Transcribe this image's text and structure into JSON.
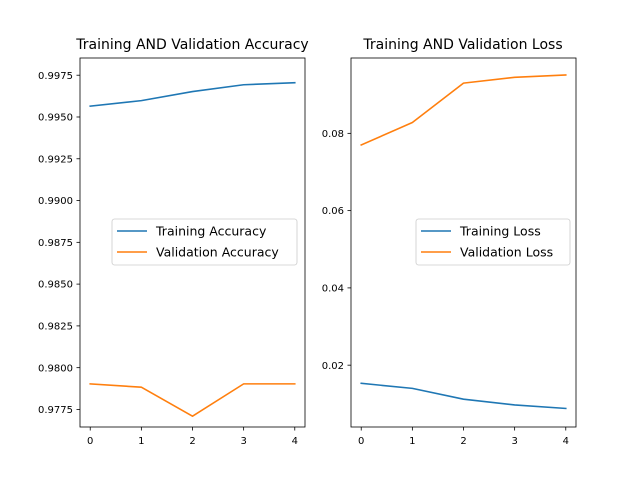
{
  "colors": {
    "training": "#1f77b4",
    "validation": "#ff7f0e",
    "axis": "#000000",
    "background": "#ffffff"
  },
  "chart_data": [
    {
      "type": "line",
      "title": "Training AND Validation Accuracy",
      "xlabel": "",
      "ylabel": "",
      "x": [
        0,
        1,
        2,
        3,
        4
      ],
      "xticks": [
        0,
        1,
        2,
        3,
        4
      ],
      "yticks": [
        0.9775,
        0.98,
        0.9825,
        0.985,
        0.9875,
        0.99,
        0.9925,
        0.995,
        0.9975
      ],
      "ytick_labels": [
        "0.9775",
        "0.9800",
        "0.9825",
        "0.9850",
        "0.9875",
        "0.9900",
        "0.9925",
        "0.9950",
        "0.9975"
      ],
      "xlim": [
        -0.2,
        4.2
      ],
      "ylim": [
        0.97645,
        0.99853
      ],
      "grid": false,
      "legend_position": "center-right",
      "series": [
        {
          "name": "Training Accuracy",
          "color": "#1f77b4",
          "values": [
            0.99565,
            0.99598,
            0.99652,
            0.99693,
            0.99705
          ]
        },
        {
          "name": "Validation Accuracy",
          "color": "#ff7f0e",
          "values": [
            0.97903,
            0.97883,
            0.9771,
            0.97903,
            0.97903
          ]
        }
      ]
    },
    {
      "type": "line",
      "title": "Training AND Validation Loss",
      "xlabel": "",
      "ylabel": "",
      "x": [
        0,
        1,
        2,
        3,
        4
      ],
      "xticks": [
        0,
        1,
        2,
        3,
        4
      ],
      "yticks": [
        0.02,
        0.04,
        0.06,
        0.08
      ],
      "ytick_labels": [
        "0.02",
        "0.04",
        "0.06",
        "0.08"
      ],
      "xlim": [
        -0.2,
        4.2
      ],
      "ylim": [
        0.004,
        0.0995
      ],
      "grid": false,
      "legend_position": "center-right",
      "series": [
        {
          "name": "Training Loss",
          "color": "#1f77b4",
          "values": [
            0.0153,
            0.014,
            0.0112,
            0.0097,
            0.0088
          ]
        },
        {
          "name": "Validation Loss",
          "color": "#ff7f0e",
          "values": [
            0.077,
            0.0828,
            0.093,
            0.0945,
            0.0951
          ]
        }
      ]
    }
  ]
}
